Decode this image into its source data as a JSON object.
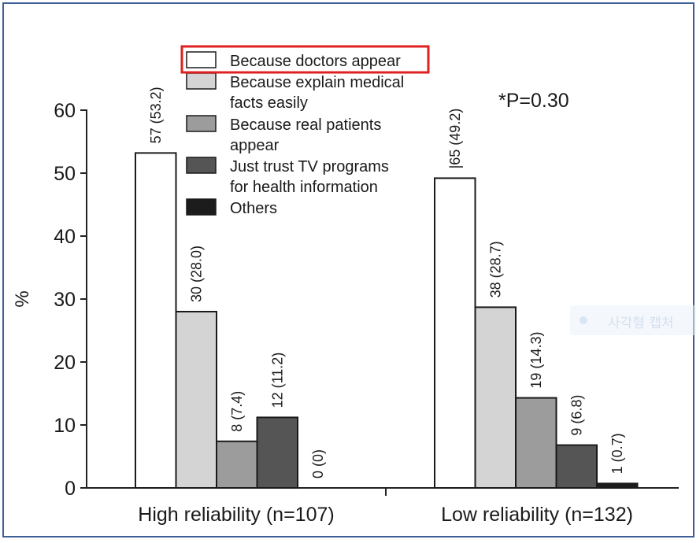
{
  "chart_data": {
    "type": "bar",
    "categories": [
      "High reliability (n=107)",
      "Low reliability (n=132)"
    ],
    "series": [
      {
        "name": "Because doctors appear",
        "color": "#ffffff",
        "values": [
          53.2,
          49.2
        ],
        "labels": [
          "57 (53.2)",
          "|65 (49.2)"
        ]
      },
      {
        "name": "Because explain medical facts easily",
        "color": "#d4d4d4",
        "values": [
          28.0,
          28.7
        ],
        "labels": [
          "30 (28.0)",
          "38 (28.7)"
        ]
      },
      {
        "name": "Because real patients appear",
        "color": "#9c9c9c",
        "values": [
          7.4,
          14.3
        ],
        "labels": [
          "8 (7.4)",
          "19 (14.3)"
        ]
      },
      {
        "name": "Just trust TV programs for health information",
        "color": "#555555",
        "values": [
          11.2,
          6.8
        ],
        "labels": [
          "12 (11.2)",
          "9 (6.8)"
        ]
      },
      {
        "name": "Others",
        "color": "#1c1c1c",
        "values": [
          0,
          0.7
        ],
        "labels": [
          "0 (0)",
          "1 (0.7)"
        ]
      }
    ],
    "legend": [
      [
        "Because doctors appear"
      ],
      [
        "Because explain medical",
        "facts easily"
      ],
      [
        "Because real patients",
        "appear"
      ],
      [
        "Just trust TV programs",
        "for health information"
      ],
      [
        "Others"
      ]
    ],
    "legend_highlight_color": "#e02020",
    "ylabel": "%",
    "ylim": [
      0,
      60
    ],
    "yticks": [
      "0",
      "10",
      "20",
      "30",
      "40",
      "50",
      "60"
    ],
    "annotation": "*P=0.30",
    "legend_position": "top-left",
    "grid": false
  },
  "watermark": {
    "text": "사각형 캡처"
  }
}
